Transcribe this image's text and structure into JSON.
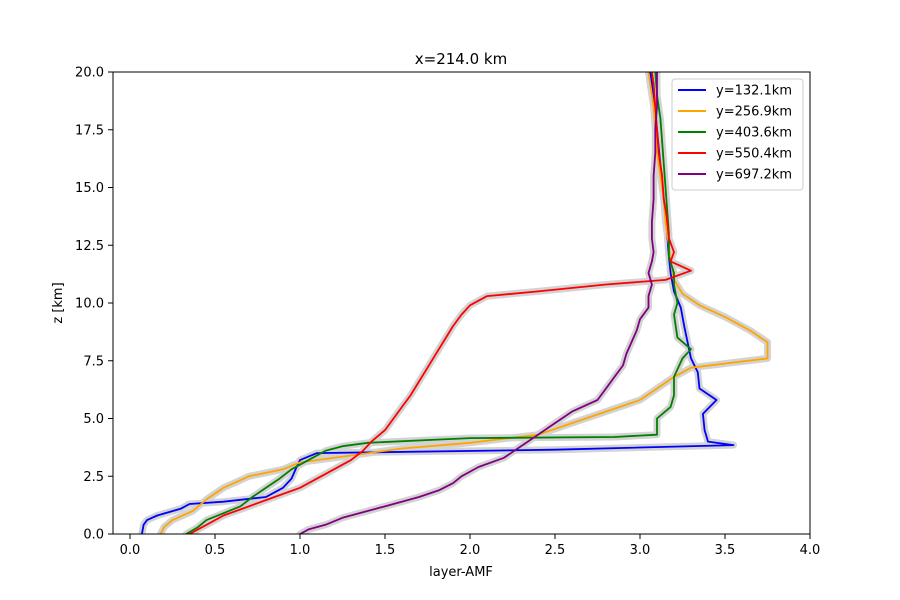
{
  "chart_data": {
    "type": "line",
    "title": "x=214.0 km",
    "xlabel": "layer-AMF",
    "ylabel": "z [km]",
    "xlim": [
      -0.1,
      4.0
    ],
    "ylim": [
      0,
      20
    ],
    "xticks": [
      "0.0",
      "0.5",
      "1.0",
      "1.5",
      "2.0",
      "2.5",
      "3.0",
      "3.5",
      "4.0"
    ],
    "yticks": [
      "0.0",
      "2.5",
      "5.0",
      "7.5",
      "10.0",
      "12.5",
      "15.0",
      "17.5",
      "20.0"
    ],
    "grid": false,
    "legend_position": "top-right",
    "uncertainty_band_color": "#d3d3d3",
    "series": [
      {
        "name": "y=132.1km",
        "color": "#0000ff",
        "points": [
          [
            0.07,
            0
          ],
          [
            0.08,
            0.4
          ],
          [
            0.1,
            0.6
          ],
          [
            0.16,
            0.8
          ],
          [
            0.3,
            1.1
          ],
          [
            0.35,
            1.3
          ],
          [
            0.55,
            1.4
          ],
          [
            0.8,
            1.6
          ],
          [
            0.9,
            2.0
          ],
          [
            0.95,
            2.4
          ],
          [
            0.98,
            2.9
          ],
          [
            1.0,
            3.2
          ],
          [
            1.1,
            3.5
          ],
          [
            2.5,
            3.65
          ],
          [
            3.55,
            3.85
          ],
          [
            3.4,
            4.0
          ],
          [
            3.38,
            4.5
          ],
          [
            3.37,
            5.2
          ],
          [
            3.45,
            5.8
          ],
          [
            3.35,
            6.3
          ],
          [
            3.34,
            7.0
          ],
          [
            3.3,
            7.6
          ],
          [
            3.28,
            8.3
          ],
          [
            3.26,
            9.0
          ],
          [
            3.24,
            9.8
          ],
          [
            3.2,
            10.5
          ],
          [
            3.18,
            11.3
          ],
          [
            3.17,
            12.0
          ],
          [
            3.16,
            13.0
          ],
          [
            3.14,
            14.5
          ],
          [
            3.12,
            16.0
          ],
          [
            3.1,
            17.5
          ],
          [
            3.08,
            19.0
          ],
          [
            3.06,
            20.0
          ]
        ]
      },
      {
        "name": "y=256.9km",
        "color": "#ffa500",
        "points": [
          [
            0.18,
            0
          ],
          [
            0.2,
            0.3
          ],
          [
            0.25,
            0.6
          ],
          [
            0.37,
            1.0
          ],
          [
            0.45,
            1.5
          ],
          [
            0.55,
            2.0
          ],
          [
            0.7,
            2.5
          ],
          [
            0.9,
            2.8
          ],
          [
            1.0,
            3.1
          ],
          [
            1.3,
            3.4
          ],
          [
            1.6,
            3.7
          ],
          [
            2.0,
            3.95
          ],
          [
            2.4,
            4.3
          ],
          [
            2.6,
            4.8
          ],
          [
            2.8,
            5.3
          ],
          [
            3.0,
            5.8
          ],
          [
            3.1,
            6.3
          ],
          [
            3.2,
            6.8
          ],
          [
            3.3,
            7.2
          ],
          [
            3.75,
            7.6
          ],
          [
            3.75,
            8.3
          ],
          [
            3.65,
            8.8
          ],
          [
            3.5,
            9.4
          ],
          [
            3.35,
            9.9
          ],
          [
            3.25,
            10.4
          ],
          [
            3.2,
            11.0
          ],
          [
            3.18,
            11.8
          ],
          [
            3.17,
            12.5
          ],
          [
            3.15,
            13.5
          ],
          [
            3.14,
            14.5
          ],
          [
            3.12,
            15.5
          ],
          [
            3.1,
            16.5
          ],
          [
            3.09,
            17.5
          ],
          [
            3.08,
            18.5
          ],
          [
            3.06,
            19.5
          ],
          [
            3.05,
            20.0
          ]
        ]
      },
      {
        "name": "y=403.6km",
        "color": "#008000",
        "points": [
          [
            0.33,
            0
          ],
          [
            0.4,
            0.3
          ],
          [
            0.45,
            0.6
          ],
          [
            0.55,
            0.9
          ],
          [
            0.65,
            1.2
          ],
          [
            0.72,
            1.6
          ],
          [
            0.8,
            2.0
          ],
          [
            0.88,
            2.4
          ],
          [
            0.95,
            2.8
          ],
          [
            1.05,
            3.2
          ],
          [
            1.15,
            3.6
          ],
          [
            1.25,
            3.8
          ],
          [
            1.4,
            3.95
          ],
          [
            2.0,
            4.15
          ],
          [
            2.85,
            4.2
          ],
          [
            3.1,
            4.3
          ],
          [
            3.1,
            5.0
          ],
          [
            3.18,
            5.5
          ],
          [
            3.2,
            6.0
          ],
          [
            3.2,
            6.8
          ],
          [
            3.25,
            7.6
          ],
          [
            3.3,
            8.0
          ],
          [
            3.22,
            8.5
          ],
          [
            3.2,
            9.5
          ],
          [
            3.22,
            10.0
          ],
          [
            3.2,
            10.8
          ],
          [
            3.2,
            11.3
          ],
          [
            3.17,
            12.0
          ],
          [
            3.17,
            13.0
          ],
          [
            3.16,
            14.0
          ],
          [
            3.15,
            15.0
          ],
          [
            3.14,
            16.0
          ],
          [
            3.13,
            17.0
          ],
          [
            3.12,
            18.0
          ],
          [
            3.1,
            19.0
          ],
          [
            3.09,
            20.0
          ]
        ]
      },
      {
        "name": "y=550.4km",
        "color": "#ff0000",
        "points": [
          [
            0.35,
            0
          ],
          [
            0.45,
            0.4
          ],
          [
            0.55,
            0.8
          ],
          [
            0.7,
            1.2
          ],
          [
            0.85,
            1.6
          ],
          [
            1.0,
            2.0
          ],
          [
            1.1,
            2.4
          ],
          [
            1.2,
            2.8
          ],
          [
            1.3,
            3.2
          ],
          [
            1.37,
            3.6
          ],
          [
            1.42,
            4.0
          ],
          [
            1.5,
            4.5
          ],
          [
            1.55,
            5.0
          ],
          [
            1.6,
            5.5
          ],
          [
            1.65,
            6.0
          ],
          [
            1.7,
            6.6
          ],
          [
            1.75,
            7.2
          ],
          [
            1.8,
            7.8
          ],
          [
            1.85,
            8.4
          ],
          [
            1.9,
            9.0
          ],
          [
            1.95,
            9.5
          ],
          [
            2.0,
            9.9
          ],
          [
            2.1,
            10.3
          ],
          [
            2.4,
            10.5
          ],
          [
            2.8,
            10.8
          ],
          [
            3.15,
            11.0
          ],
          [
            3.3,
            11.4
          ],
          [
            3.18,
            11.8
          ],
          [
            3.2,
            12.2
          ],
          [
            3.17,
            12.8
          ],
          [
            3.16,
            13.6
          ],
          [
            3.14,
            14.5
          ],
          [
            3.13,
            15.5
          ],
          [
            3.11,
            16.5
          ],
          [
            3.1,
            17.5
          ],
          [
            3.09,
            18.5
          ],
          [
            3.08,
            19.5
          ],
          [
            3.07,
            20.0
          ]
        ]
      },
      {
        "name": "y=697.2km",
        "color": "#800080",
        "points": [
          [
            1.0,
            0
          ],
          [
            1.05,
            0.2
          ],
          [
            1.15,
            0.4
          ],
          [
            1.25,
            0.7
          ],
          [
            1.4,
            1.0
          ],
          [
            1.55,
            1.3
          ],
          [
            1.7,
            1.6
          ],
          [
            1.82,
            1.9
          ],
          [
            1.9,
            2.2
          ],
          [
            1.95,
            2.5
          ],
          [
            2.05,
            2.9
          ],
          [
            2.2,
            3.3
          ],
          [
            2.3,
            3.8
          ],
          [
            2.4,
            4.3
          ],
          [
            2.5,
            4.8
          ],
          [
            2.6,
            5.3
          ],
          [
            2.75,
            5.8
          ],
          [
            2.8,
            6.3
          ],
          [
            2.85,
            6.8
          ],
          [
            2.9,
            7.3
          ],
          [
            2.92,
            7.8
          ],
          [
            2.95,
            8.3
          ],
          [
            2.98,
            8.8
          ],
          [
            3.0,
            9.3
          ],
          [
            3.05,
            9.8
          ],
          [
            3.05,
            10.3
          ],
          [
            3.07,
            10.8
          ],
          [
            3.05,
            11.3
          ],
          [
            3.07,
            11.8
          ],
          [
            3.08,
            12.2
          ],
          [
            3.07,
            12.8
          ],
          [
            3.07,
            13.5
          ],
          [
            3.08,
            14.5
          ],
          [
            3.08,
            15.5
          ],
          [
            3.09,
            16.5
          ],
          [
            3.09,
            17.5
          ],
          [
            3.1,
            18.5
          ],
          [
            3.1,
            19.5
          ],
          [
            3.1,
            20.0
          ]
        ]
      }
    ]
  }
}
